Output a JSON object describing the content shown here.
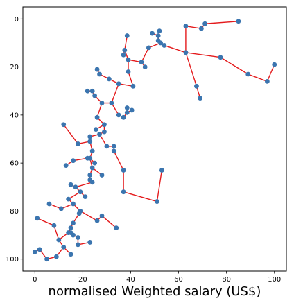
{
  "chart_data": {
    "type": "scatter",
    "xlabel": "normalised Weighted salary (US$)",
    "ylabel": "",
    "title": "",
    "xlim": [
      -5,
      105
    ],
    "ylim": [
      105,
      -5
    ],
    "y_axis_inverted": true,
    "xticks": [
      "0",
      "20",
      "40",
      "60",
      "80",
      "100"
    ],
    "yticks": [
      "0",
      "20",
      "40",
      "60",
      "80",
      "100"
    ],
    "grid": false,
    "colors": {
      "points": "#3b75af",
      "edges": "#e41a1c"
    },
    "points": [
      {
        "id": "P0",
        "x": 85,
        "y": 1
      },
      {
        "id": "P1",
        "x": 71,
        "y": 2
      },
      {
        "id": "P2",
        "x": 69.5,
        "y": 4
      },
      {
        "id": "P3",
        "x": 63,
        "y": 3
      },
      {
        "id": "P4",
        "x": 63,
        "y": 14
      },
      {
        "id": "P5",
        "x": 77.5,
        "y": 16
      },
      {
        "id": "P6",
        "x": 89,
        "y": 23
      },
      {
        "id": "P7",
        "x": 97,
        "y": 26
      },
      {
        "id": "P8",
        "x": 100,
        "y": 19
      },
      {
        "id": "P9",
        "x": 67.5,
        "y": 28
      },
      {
        "id": "P10",
        "x": 69,
        "y": 33
      },
      {
        "id": "P11",
        "x": 52,
        "y": 5
      },
      {
        "id": "P12",
        "x": 49,
        "y": 6
      },
      {
        "id": "P13",
        "x": 51.5,
        "y": 7
      },
      {
        "id": "P14",
        "x": 51.5,
        "y": 9
      },
      {
        "id": "P15",
        "x": 52.5,
        "y": 10
      },
      {
        "id": "P16",
        "x": 54,
        "y": 11
      },
      {
        "id": "P17",
        "x": 47.5,
        "y": 12
      },
      {
        "id": "P18",
        "x": 44.5,
        "y": 18
      },
      {
        "id": "P19",
        "x": 46,
        "y": 20
      },
      {
        "id": "P20",
        "x": 39,
        "y": 17
      },
      {
        "id": "P21",
        "x": 39,
        "y": 22
      },
      {
        "id": "P22",
        "x": 41,
        "y": 28
      },
      {
        "id": "P23",
        "x": 37.5,
        "y": 13
      },
      {
        "id": "P24",
        "x": 38.5,
        "y": 7
      },
      {
        "id": "P25",
        "x": 37,
        "y": 15
      },
      {
        "id": "P26",
        "x": 26,
        "y": 21
      },
      {
        "id": "P27",
        "x": 27,
        "y": 23
      },
      {
        "id": "P28",
        "x": 31,
        "y": 25
      },
      {
        "id": "P29",
        "x": 35,
        "y": 27
      },
      {
        "id": "P30",
        "x": 22,
        "y": 30
      },
      {
        "id": "P31",
        "x": 24,
        "y": 30
      },
      {
        "id": "P32",
        "x": 25,
        "y": 32
      },
      {
        "id": "P33",
        "x": 28,
        "y": 35
      },
      {
        "id": "P34",
        "x": 32,
        "y": 35
      },
      {
        "id": "P35",
        "x": 35,
        "y": 40
      },
      {
        "id": "P36",
        "x": 37,
        "y": 41
      },
      {
        "id": "P37",
        "x": 38.5,
        "y": 39
      },
      {
        "id": "P38",
        "x": 38.5,
        "y": 37
      },
      {
        "id": "P39",
        "x": 40.5,
        "y": 38
      },
      {
        "id": "P40",
        "x": 26,
        "y": 41
      },
      {
        "id": "P41",
        "x": 29,
        "y": 44
      },
      {
        "id": "P42",
        "x": 25.5,
        "y": 46
      },
      {
        "id": "P43",
        "x": 29,
        "y": 47
      },
      {
        "id": "P44",
        "x": 27,
        "y": 48
      },
      {
        "id": "P45",
        "x": 23,
        "y": 49
      },
      {
        "id": "P46",
        "x": 23,
        "y": 51
      },
      {
        "id": "P47",
        "x": 18,
        "y": 52
      },
      {
        "id": "P48",
        "x": 12,
        "y": 44
      },
      {
        "id": "P49",
        "x": 30,
        "y": 53
      },
      {
        "id": "P50",
        "x": 33,
        "y": 53
      },
      {
        "id": "P51",
        "x": 33,
        "y": 55
      },
      {
        "id": "P52",
        "x": 24,
        "y": 55
      },
      {
        "id": "P53",
        "x": 23,
        "y": 58
      },
      {
        "id": "P54",
        "x": 25,
        "y": 60
      },
      {
        "id": "P55",
        "x": 22,
        "y": 58
      },
      {
        "id": "P56",
        "x": 16,
        "y": 59
      },
      {
        "id": "P57",
        "x": 13,
        "y": 61
      },
      {
        "id": "P58",
        "x": 24,
        "y": 62
      },
      {
        "id": "P59",
        "x": 28,
        "y": 65
      },
      {
        "id": "P60",
        "x": 23,
        "y": 65
      },
      {
        "id": "P61",
        "x": 23,
        "y": 67
      },
      {
        "id": "P62",
        "x": 24,
        "y": 68
      },
      {
        "id": "P63",
        "x": 37,
        "y": 63
      },
      {
        "id": "P64",
        "x": 37,
        "y": 72
      },
      {
        "id": "P65",
        "x": 51,
        "y": 76
      },
      {
        "id": "P66",
        "x": 53,
        "y": 63
      },
      {
        "id": "P67",
        "x": 15,
        "y": 69
      },
      {
        "id": "P68",
        "x": 17,
        "y": 70
      },
      {
        "id": "P69",
        "x": 19,
        "y": 72
      },
      {
        "id": "P70",
        "x": 21,
        "y": 74
      },
      {
        "id": "P71",
        "x": 14,
        "y": 75
      },
      {
        "id": "P72",
        "x": 16,
        "y": 77
      },
      {
        "id": "P73",
        "x": 11,
        "y": 79
      },
      {
        "id": "P74",
        "x": 6,
        "y": 77
      },
      {
        "id": "P75",
        "x": 19,
        "y": 80
      },
      {
        "id": "P76",
        "x": 18.5,
        "y": 81
      },
      {
        "id": "P77",
        "x": 16,
        "y": 85
      },
      {
        "id": "P78",
        "x": 15,
        "y": 87
      },
      {
        "id": "P79",
        "x": 14,
        "y": 89
      },
      {
        "id": "P80",
        "x": 15,
        "y": 89
      },
      {
        "id": "P81",
        "x": 16,
        "y": 90
      },
      {
        "id": "P82",
        "x": 18,
        "y": 91
      },
      {
        "id": "P83",
        "x": 18,
        "y": 94
      },
      {
        "id": "P84",
        "x": 23,
        "y": 93
      },
      {
        "id": "P85",
        "x": 10,
        "y": 92
      },
      {
        "id": "P86",
        "x": 8,
        "y": 86
      },
      {
        "id": "P87",
        "x": 1,
        "y": 83
      },
      {
        "id": "P88",
        "x": 12,
        "y": 95
      },
      {
        "id": "P89",
        "x": 15,
        "y": 98
      },
      {
        "id": "P90",
        "x": 9,
        "y": 99
      },
      {
        "id": "P91",
        "x": 5,
        "y": 100
      },
      {
        "id": "P92",
        "x": 2,
        "y": 96
      },
      {
        "id": "P93",
        "x": 0,
        "y": 97
      },
      {
        "id": "P94",
        "x": 26,
        "y": 84
      },
      {
        "id": "P95",
        "x": 28,
        "y": 82
      },
      {
        "id": "P96",
        "x": 34,
        "y": 87
      }
    ],
    "edges": [
      [
        "P0",
        "P1"
      ],
      [
        "P1",
        "P2"
      ],
      [
        "P2",
        "P3"
      ],
      [
        "P3",
        "P4"
      ],
      [
        "P4",
        "P5"
      ],
      [
        "P5",
        "P6"
      ],
      [
        "P6",
        "P7"
      ],
      [
        "P7",
        "P8"
      ],
      [
        "P4",
        "P9"
      ],
      [
        "P9",
        "P10"
      ],
      [
        "P4",
        "P16"
      ],
      [
        "P16",
        "P15"
      ],
      [
        "P15",
        "P14"
      ],
      [
        "P14",
        "P11"
      ],
      [
        "P14",
        "P13"
      ],
      [
        "P13",
        "P12"
      ],
      [
        "P15",
        "P17"
      ],
      [
        "P17",
        "P18"
      ],
      [
        "P18",
        "P19"
      ],
      [
        "P18",
        "P20"
      ],
      [
        "P20",
        "P21"
      ],
      [
        "P21",
        "P22"
      ],
      [
        "P20",
        "P23"
      ],
      [
        "P23",
        "P24"
      ],
      [
        "P23",
        "P25"
      ],
      [
        "P22",
        "P29"
      ],
      [
        "P29",
        "P28"
      ],
      [
        "P28",
        "P27"
      ],
      [
        "P27",
        "P26"
      ],
      [
        "P29",
        "P34"
      ],
      [
        "P34",
        "P33"
      ],
      [
        "P33",
        "P32"
      ],
      [
        "P32",
        "P31"
      ],
      [
        "P31",
        "P30"
      ],
      [
        "P34",
        "P35"
      ],
      [
        "P35",
        "P36"
      ],
      [
        "P36",
        "P37"
      ],
      [
        "P37",
        "P38"
      ],
      [
        "P37",
        "P39"
      ],
      [
        "P33",
        "P40"
      ],
      [
        "P40",
        "P41"
      ],
      [
        "P41",
        "P42"
      ],
      [
        "P41",
        "P43"
      ],
      [
        "P43",
        "P44"
      ],
      [
        "P44",
        "P45"
      ],
      [
        "P45",
        "P46"
      ],
      [
        "P46",
        "P47"
      ],
      [
        "P47",
        "P48"
      ],
      [
        "P44",
        "P49"
      ],
      [
        "P49",
        "P50"
      ],
      [
        "P50",
        "P51"
      ],
      [
        "P46",
        "P52"
      ],
      [
        "P52",
        "P53"
      ],
      [
        "P53",
        "P54"
      ],
      [
        "P53",
        "P55"
      ],
      [
        "P55",
        "P56"
      ],
      [
        "P56",
        "P57"
      ],
      [
        "P53",
        "P58"
      ],
      [
        "P58",
        "P59"
      ],
      [
        "P58",
        "P60"
      ],
      [
        "P60",
        "P61"
      ],
      [
        "P61",
        "P62"
      ],
      [
        "P51",
        "P63"
      ],
      [
        "P63",
        "P64"
      ],
      [
        "P64",
        "P65"
      ],
      [
        "P65",
        "P66"
      ],
      [
        "P62",
        "P68"
      ],
      [
        "P68",
        "P67"
      ],
      [
        "P68",
        "P69"
      ],
      [
        "P69",
        "P70"
      ],
      [
        "P69",
        "P71"
      ],
      [
        "P71",
        "P72"
      ],
      [
        "P72",
        "P73"
      ],
      [
        "P73",
        "P74"
      ],
      [
        "P72",
        "P75"
      ],
      [
        "P75",
        "P76"
      ],
      [
        "P76",
        "P77"
      ],
      [
        "P77",
        "P78"
      ],
      [
        "P78",
        "P79"
      ],
      [
        "P79",
        "P80"
      ],
      [
        "P80",
        "P81"
      ],
      [
        "P81",
        "P82"
      ],
      [
        "P82",
        "P83"
      ],
      [
        "P83",
        "P84"
      ],
      [
        "P79",
        "P85"
      ],
      [
        "P85",
        "P86"
      ],
      [
        "P86",
        "P87"
      ],
      [
        "P85",
        "P88"
      ],
      [
        "P88",
        "P89"
      ],
      [
        "P88",
        "P90"
      ],
      [
        "P90",
        "P91"
      ],
      [
        "P91",
        "P92"
      ],
      [
        "P92",
        "P93"
      ],
      [
        "P75",
        "P94"
      ],
      [
        "P94",
        "P95"
      ],
      [
        "P95",
        "P96"
      ]
    ]
  }
}
